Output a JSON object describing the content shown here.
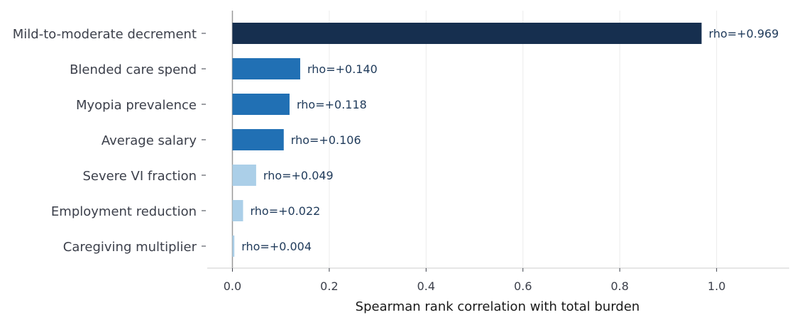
{
  "chart_data": {
    "type": "bar",
    "orientation": "horizontal",
    "categories": [
      "Mild-to-moderate decrement",
      "Blended care spend",
      "Myopia prevalence",
      "Average salary",
      "Severe VI fraction",
      "Employment reduction",
      "Caregiving multiplier"
    ],
    "values": [
      0.969,
      0.14,
      0.118,
      0.106,
      0.049,
      0.022,
      0.004
    ],
    "data_labels": [
      "rho=+0.969",
      "rho=+0.140",
      "rho=+0.118",
      "rho=+0.106",
      "rho=+0.049",
      "rho=+0.022",
      "rho=+0.004"
    ],
    "bar_colors": [
      "#162f4f",
      "#2170b4",
      "#2170b4",
      "#2170b4",
      "#abcfe8",
      "#abcfe8",
      "#abcfe8"
    ],
    "xlabel": "Spearman rank correlation with total burden",
    "ylabel": "",
    "xlim": [
      -0.052,
      1.15
    ],
    "xticks": [
      0.0,
      0.2,
      0.4,
      0.6,
      0.8,
      1.0
    ],
    "xtick_labels": [
      "0.0",
      "0.2",
      "0.4",
      "0.6",
      "0.8",
      "1.0"
    ],
    "grid": "vertical",
    "grid_color": "#ebebeb",
    "zero_line_color": "#999999"
  }
}
